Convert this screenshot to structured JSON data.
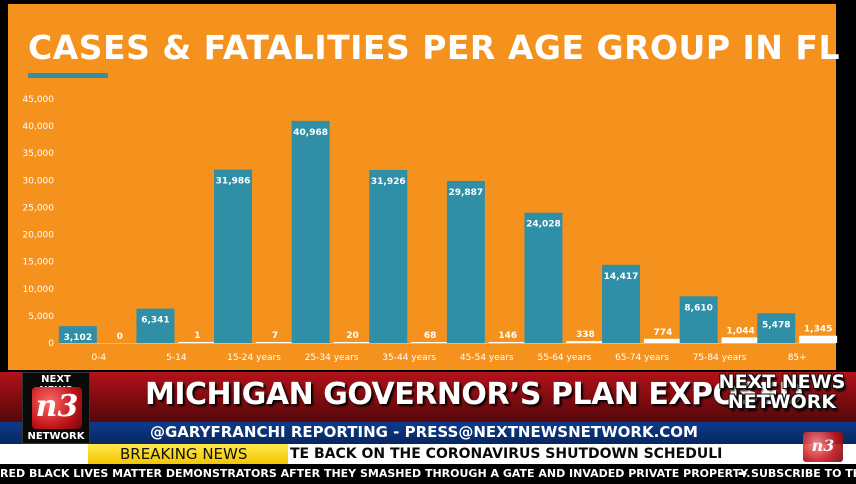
{
  "slide": {
    "title": "CASES & FATALITIES PER AGE GROUP IN FL"
  },
  "colors": {
    "background": "#F5921E",
    "cases_bar": "#2E8FA6",
    "fatalities_bar": "#FFFFFF",
    "text": "#FFFFFF"
  },
  "chart_data": {
    "type": "bar",
    "title": "CASES & FATALITIES PER AGE GROUP IN FL",
    "xlabel": "",
    "ylabel": "",
    "ylim": [
      0,
      45000
    ],
    "yticks": [
      0,
      5000,
      10000,
      15000,
      20000,
      25000,
      30000,
      35000,
      40000,
      45000
    ],
    "ytick_labels": [
      "0",
      "5,000",
      "10,000",
      "15,000",
      "20,000",
      "25,000",
      "30,000",
      "35,000",
      "40,000",
      "45,000"
    ],
    "grid": false,
    "legend": "none",
    "categories": [
      "0-4",
      "5-14",
      "15-24 years",
      "25-34 years",
      "35-44 years",
      "45-54 years",
      "55-64 years",
      "65-74 years",
      "75-84 years",
      "85+"
    ],
    "series": [
      {
        "values": [
          3102,
          6341,
          31986,
          40968,
          31926,
          29887,
          24028,
          14417,
          8610,
          5478
        ],
        "labels": [
          "3,102",
          "6,341",
          "31,986",
          "40,968",
          "31,926",
          "29,887",
          "24,028",
          "14,417",
          "8,610",
          "5,478"
        ],
        "color": "#2E8FA6"
      },
      {
        "values": [
          0,
          1,
          7,
          20,
          68,
          146,
          338,
          774,
          1044,
          1345
        ],
        "labels": [
          "0",
          "1",
          "7",
          "20",
          "68",
          "146",
          "338",
          "774",
          "1,044",
          "1,345"
        ],
        "color": "#FFFFFF"
      }
    ]
  },
  "lower_third": {
    "logo_top": "NEXT NEWS",
    "logo_mark": "n3",
    "logo_bottom": "NETWORK",
    "headline": "MICHIGAN GOVERNOR’S PLAN EXPOSED",
    "brand": "NEXT NEWS NETWORK",
    "credit": "@GARYFRANCHI REPORTING - PRESS@NEXTNEWSNETWORK.COM",
    "breaking_label": "BREAKING NEWS",
    "breaking_headline": "TE BACK ON THE CORONAVIRUS SHUTDOWN SCHEDULI",
    "ticker": "RED BLACK LIVES MATTER DEMONSTRATORS AFTER THEY SMASHED THROUGH A GATE AND INVADED PRIVATE PROPERTY.",
    "ticker_sub": "➡ SUBSCRIBE TO TH",
    "corner_bug": "n3"
  }
}
